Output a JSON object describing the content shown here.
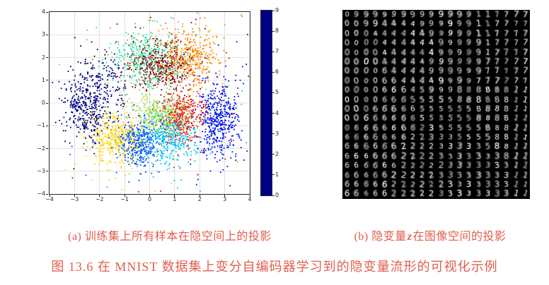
{
  "figure": {
    "caption_a": "(a) 训练集上所有样本在隐空间上的投影",
    "caption_b": {
      "prefix": "(b) 隐变量",
      "var": "z",
      "suffix": "在图像空间的投影"
    },
    "main_caption": "图 13.6  在 MNIST 数据集上变分自编码器学习到的隐变量流形的可视化示例",
    "caption_color": "#df5f4d"
  },
  "chart_data": [
    {
      "type": "scatter",
      "subfigure": "a",
      "title": "",
      "xlabel": "",
      "ylabel": "",
      "xlim": [
        -4,
        4
      ],
      "ylim": [
        -4,
        4
      ],
      "xticks": [
        -4,
        -3,
        -2,
        -1,
        0,
        1,
        2,
        3,
        4
      ],
      "yticks": [
        -4,
        -3,
        -2,
        -1,
        0,
        1,
        2,
        3,
        4
      ],
      "xtick_labels": [
        "−4",
        "−3",
        "−2",
        "−1",
        "0",
        "1",
        "2",
        "3",
        "4"
      ],
      "ytick_labels": [
        "−4",
        "−3",
        "−2",
        "−1",
        "0",
        "1",
        "2",
        "3",
        "4"
      ],
      "grid": true,
      "grid_color": "#c9c9c9",
      "axis_color": "#262626",
      "marker": "point",
      "marker_radius_px": 1.05,
      "colorbar": {
        "position": "right",
        "tick_labels": [
          "0",
          "1",
          "2",
          "3",
          "4",
          "5",
          "6",
          "7",
          "8",
          "9"
        ],
        "colors_bottom_to_top": [
          "#000087",
          "#0013f2",
          "#0058ff",
          "#00c8ff",
          "#35e3a4",
          "#9ce04a",
          "#ffd700",
          "#ff8a00",
          "#f21b00",
          "#8b0000"
        ]
      },
      "clusters": [
        {
          "digit": 0,
          "color": "#000087",
          "center": [
            -2.45,
            -0.3
          ],
          "std": [
            0.5,
            0.62
          ],
          "count": 330,
          "blobs": [
            {
              "center": [
                -1.95,
                0.95
              ],
              "std": [
                0.55,
                0.5
              ],
              "count": 140
            }
          ]
        },
        {
          "digit": 1,
          "color": "#0013f2",
          "center": [
            2.75,
            -0.8
          ],
          "std": [
            0.42,
            0.8
          ],
          "count": 430
        },
        {
          "digit": 2,
          "color": "#0058ff",
          "center": [
            -0.4,
            -1.75
          ],
          "std": [
            0.45,
            0.5
          ],
          "count": 330
        },
        {
          "digit": 3,
          "color": "#00c8ff",
          "center": [
            0.8,
            -1.55
          ],
          "std": [
            0.55,
            0.55
          ],
          "count": 340
        },
        {
          "digit": 4,
          "color": "#35e3a4",
          "center": [
            -0.15,
            1.95
          ],
          "std": [
            0.7,
            0.6
          ],
          "count": 380
        },
        {
          "digit": 5,
          "color": "#9ce04a",
          "center": [
            0.45,
            -0.5
          ],
          "std": [
            0.5,
            0.45
          ],
          "count": 300
        },
        {
          "digit": 6,
          "color": "#ffd700",
          "center": [
            -1.35,
            -1.55
          ],
          "std": [
            0.55,
            0.62
          ],
          "count": 360
        },
        {
          "digit": 7,
          "color": "#ff8a00",
          "center": [
            1.55,
            2.05
          ],
          "std": [
            0.58,
            0.6
          ],
          "count": 380
        },
        {
          "digit": 8,
          "color": "#f21b00",
          "center": [
            1.3,
            -0.55
          ],
          "std": [
            0.42,
            0.55
          ],
          "count": 360
        },
        {
          "digit": 9,
          "color": "#8b0000",
          "center": [
            0.4,
            1.7
          ],
          "std": [
            0.62,
            0.55
          ],
          "count": 370
        }
      ],
      "outlier_fraction": 0.12,
      "outlier_spread_multiplier": 2.8
    },
    {
      "type": "table",
      "subfigure": "b",
      "description": "20x20 grid of MNIST digit images decoded from the 2-D latent variable z",
      "grid_rows": 20,
      "grid_cols": 20,
      "background": "#000000",
      "ink": "#ededed",
      "rows": [
        "09999999999999117777",
        "00994444999999117777",
        "00044444499999117777",
        "00004444449999917777",
        "00004444449999917777",
        "00004444499999977777",
        "00006444499999977777",
        "00006644449999777777",
        "00006664599988888811",
        "00006665555588888811",
        "00066666555555888811",
        "00666666555555888811",
        "06666666235555588811",
        "66666662233355558811",
        "66666622223333358811",
        "66666622223333333811",
        "66666622222333333311",
        "66666222223333333311",
        "66666222222333333311",
        "66666222223333333311"
      ]
    }
  ]
}
